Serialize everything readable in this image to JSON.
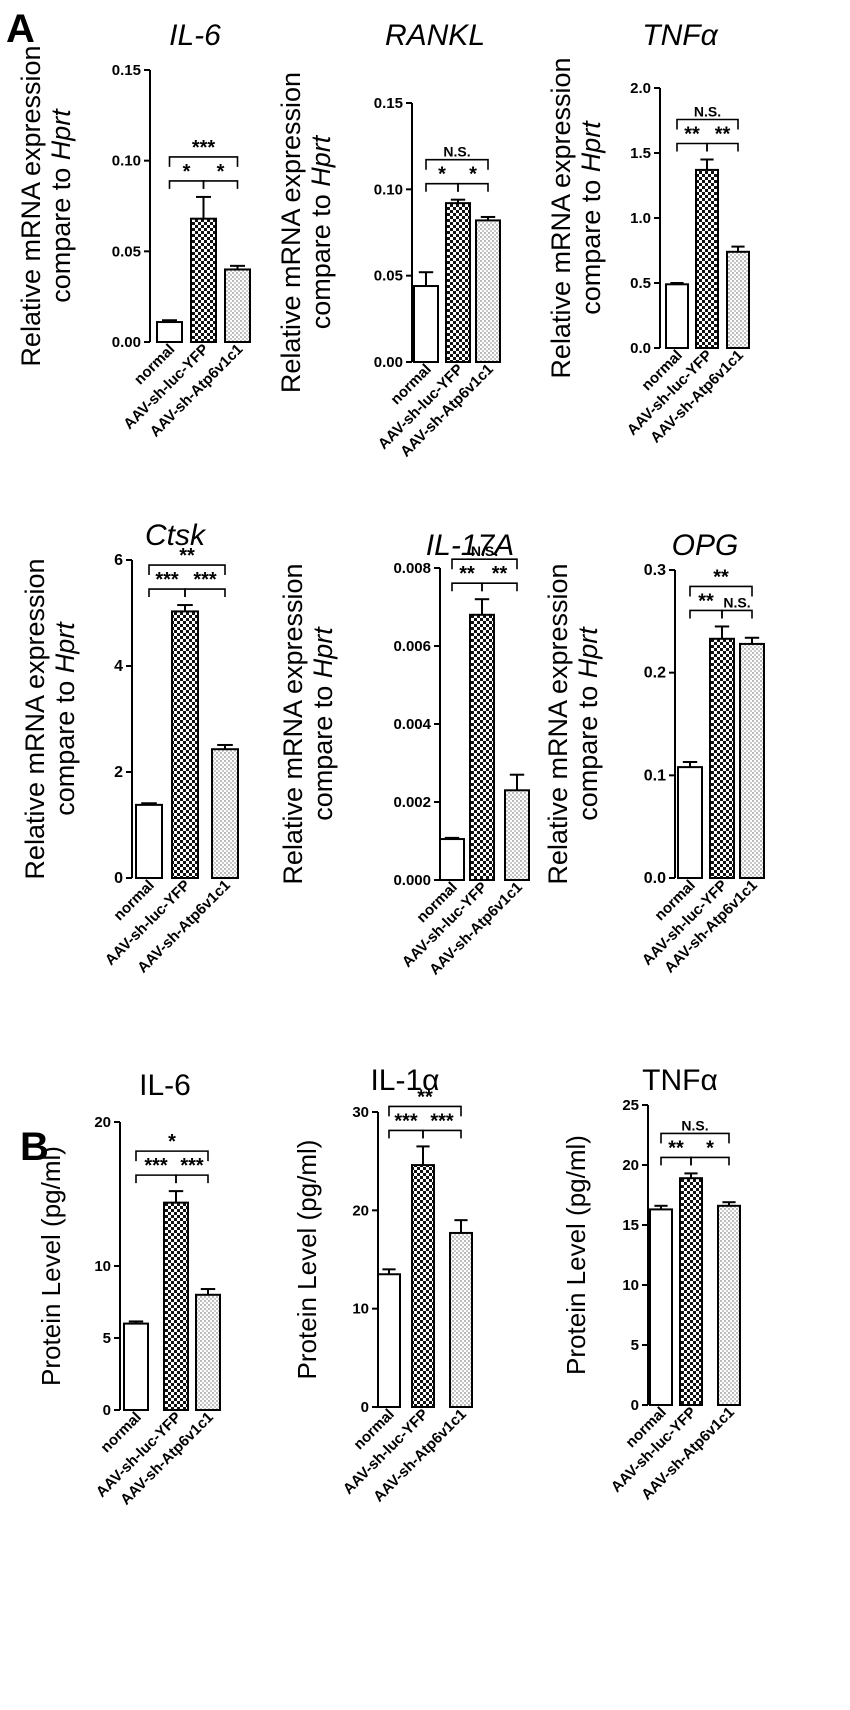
{
  "panels": [
    {
      "label": "A"
    },
    {
      "label": "B"
    }
  ],
  "chart_data": [
    {
      "type": "bar",
      "panel": "A",
      "title": "IL-6",
      "title_italic": true,
      "ylabel": "Relative mRNA expression",
      "ylabel2_prefix": "compare to ",
      "ylabel2_gene": "Hprt",
      "categories": [
        "normal",
        "AAV-sh-luc-YFP",
        "AAV-sh-Atp6v1c1"
      ],
      "values": [
        0.011,
        0.068,
        0.04
      ],
      "errors": [
        0.001,
        0.012,
        0.002
      ],
      "ylim": [
        0,
        0.15
      ],
      "yticks": [
        "0.00",
        "0.05",
        "0.10",
        "0.15"
      ],
      "significance": [
        {
          "from": 0,
          "to": 1,
          "label": "*"
        },
        {
          "from": 1,
          "to": 2,
          "label": "*"
        },
        {
          "from": 0,
          "to": 2,
          "label": "***"
        }
      ]
    },
    {
      "type": "bar",
      "panel": "A",
      "title": "RANKL",
      "title_italic": true,
      "ylabel": "Relative mRNA expression",
      "ylabel2_prefix": "compare to ",
      "ylabel2_gene": "Hprt",
      "categories": [
        "normal",
        "AAV-sh-luc-YFP",
        "AAV-sh-Atp6v1c1"
      ],
      "values": [
        0.044,
        0.092,
        0.082
      ],
      "errors": [
        0.008,
        0.002,
        0.002
      ],
      "ylim": [
        0,
        0.15
      ],
      "yticks": [
        "0.00",
        "0.05",
        "0.10",
        "0.15"
      ],
      "significance": [
        {
          "from": 0,
          "to": 1,
          "label": "*"
        },
        {
          "from": 1,
          "to": 2,
          "label": "*"
        },
        {
          "from": 0,
          "to": 2,
          "label": "N.S."
        }
      ]
    },
    {
      "type": "bar",
      "panel": "A",
      "title": "TNFα",
      "title_italic": true,
      "ylabel": "Relative mRNA expression",
      "ylabel2_prefix": "compare to ",
      "ylabel2_gene": "Hprt",
      "categories": [
        "normal",
        "AAV-sh-luc-YFP",
        "AAV-sh-Atp6v1c1"
      ],
      "values": [
        0.49,
        1.37,
        0.74
      ],
      "errors": [
        0.01,
        0.08,
        0.04
      ],
      "ylim": [
        0,
        2.0
      ],
      "yticks": [
        "0.0",
        "0.5",
        "1.0",
        "1.5",
        "2.0"
      ],
      "significance": [
        {
          "from": 0,
          "to": 1,
          "label": "**"
        },
        {
          "from": 1,
          "to": 2,
          "label": "**"
        },
        {
          "from": 0,
          "to": 2,
          "label": "N.S."
        }
      ]
    },
    {
      "type": "bar",
      "panel": "A",
      "title": "Ctsk",
      "title_italic": true,
      "ylabel": "Relative mRNA expression",
      "ylabel2_prefix": "compare to ",
      "ylabel2_gene": "Hprt",
      "categories": [
        "normal",
        "AAV-sh-luc-YFP",
        "AAV-sh-Atp6v1c1"
      ],
      "values": [
        1.38,
        5.03,
        2.43
      ],
      "errors": [
        0.03,
        0.12,
        0.08
      ],
      "ylim": [
        0,
        6
      ],
      "yticks": [
        "0",
        "2",
        "4",
        "6"
      ],
      "significance": [
        {
          "from": 0,
          "to": 1,
          "label": "***"
        },
        {
          "from": 1,
          "to": 2,
          "label": "***"
        },
        {
          "from": 0,
          "to": 2,
          "label": "**"
        }
      ]
    },
    {
      "type": "bar",
      "panel": "A",
      "title": "IL-17A",
      "title_italic": true,
      "ylabel": "Relative mRNA expression",
      "ylabel2_prefix": "compare to ",
      "ylabel2_gene": "Hprt",
      "categories": [
        "normal",
        "AAV-sh-luc-YFP",
        "AAV-sh-Atp6v1c1"
      ],
      "values": [
        0.00105,
        0.0068,
        0.0023
      ],
      "errors": [
        3e-05,
        0.0004,
        0.0004
      ],
      "ylim": [
        0,
        0.008
      ],
      "yticks": [
        "0.000",
        "0.002",
        "0.004",
        "0.006",
        "0.008"
      ],
      "significance": [
        {
          "from": 0,
          "to": 1,
          "label": "**"
        },
        {
          "from": 1,
          "to": 2,
          "label": "**"
        },
        {
          "from": 0,
          "to": 2,
          "label": "N.S."
        }
      ]
    },
    {
      "type": "bar",
      "panel": "A",
      "title": "OPG",
      "title_italic": true,
      "ylabel": "Relative mRNA expression",
      "ylabel2_prefix": "compare to ",
      "ylabel2_gene": "Hprt",
      "categories": [
        "normal",
        "AAV-sh-luc-YFP",
        "AAV-sh-Atp6v1c1"
      ],
      "values": [
        0.108,
        0.233,
        0.228
      ],
      "errors": [
        0.005,
        0.012,
        0.006
      ],
      "ylim": [
        0,
        0.3
      ],
      "yticks": [
        "0.0",
        "0.1",
        "0.2",
        "0.3"
      ],
      "significance": [
        {
          "from": 0,
          "to": 1,
          "label": "**"
        },
        {
          "from": 1,
          "to": 2,
          "label": "N.S."
        },
        {
          "from": 0,
          "to": 2,
          "label": "**"
        }
      ]
    },
    {
      "type": "bar",
      "panel": "B",
      "title": "IL-6",
      "title_italic": false,
      "ylabel": "Protein Level (pg/ml)",
      "categories": [
        "normal",
        "AAV-sh-luc-YFP",
        "AAV-sh-Atp6v1c1"
      ],
      "values": [
        6.0,
        14.4,
        8.0
      ],
      "errors": [
        0.15,
        0.8,
        0.4
      ],
      "ylim": [
        0,
        20
      ],
      "yticks": [
        "0",
        "5",
        "10",
        "20"
      ],
      "ytick_values": [
        0,
        5,
        10,
        20
      ],
      "significance": [
        {
          "from": 0,
          "to": 1,
          "label": "***"
        },
        {
          "from": 1,
          "to": 2,
          "label": "***"
        },
        {
          "from": 0,
          "to": 2,
          "label": "*"
        }
      ]
    },
    {
      "type": "bar",
      "panel": "B",
      "title": "IL-1α",
      "title_italic": false,
      "ylabel": "Protein Level (pg/ml)",
      "categories": [
        "normal",
        "AAV-sh-luc-YFP",
        "AAV-sh-Atp6v1c1"
      ],
      "values": [
        13.5,
        24.6,
        17.7
      ],
      "errors": [
        0.5,
        1.9,
        1.3
      ],
      "ylim": [
        0,
        30
      ],
      "yticks": [
        "0",
        "10",
        "20",
        "30"
      ],
      "significance": [
        {
          "from": 0,
          "to": 1,
          "label": "***"
        },
        {
          "from": 1,
          "to": 2,
          "label": "***"
        },
        {
          "from": 0,
          "to": 2,
          "label": "**"
        }
      ]
    },
    {
      "type": "bar",
      "panel": "B",
      "title": "TNFα",
      "title_italic": false,
      "ylabel": "Protein Level (pg/ml)",
      "categories": [
        "normal",
        "AAV-sh-luc-YFP",
        "AAV-sh-Atp6v1c1"
      ],
      "values": [
        16.3,
        18.9,
        16.6
      ],
      "errors": [
        0.3,
        0.4,
        0.3
      ],
      "ylim": [
        0,
        25
      ],
      "yticks": [
        "0",
        "5",
        "10",
        "15",
        "20",
        "25"
      ],
      "significance": [
        {
          "from": 0,
          "to": 1,
          "label": "**"
        },
        {
          "from": 1,
          "to": 2,
          "label": "*"
        },
        {
          "from": 0,
          "to": 2,
          "label": "N.S."
        }
      ]
    }
  ]
}
